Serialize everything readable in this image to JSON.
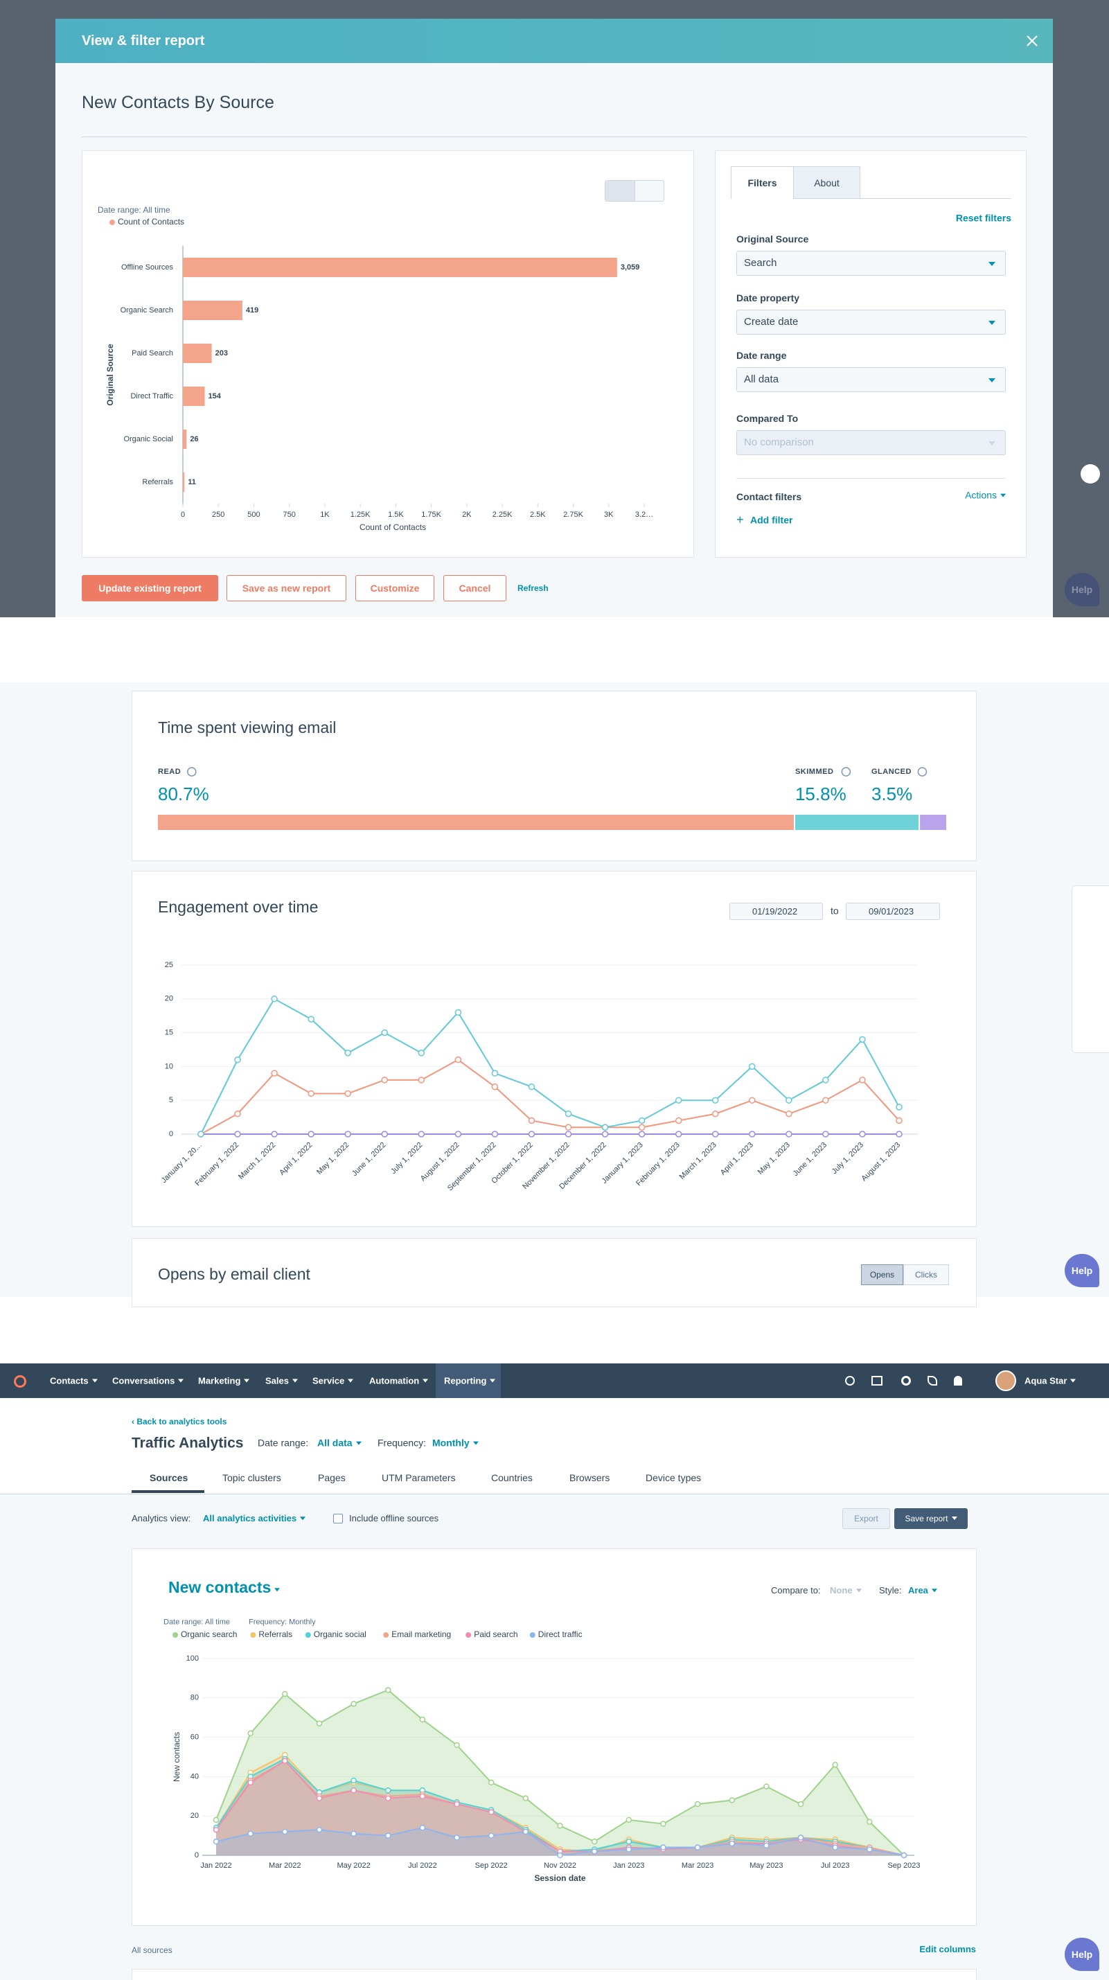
{
  "modal": {
    "title": "View & filter report",
    "report_title": "New Contacts By Source",
    "date_range": "Date range: All time",
    "tabs": [
      "Filters",
      "About"
    ],
    "reset_filters": "Reset filters",
    "filters": [
      {
        "label": "Original Source",
        "value": "Search"
      },
      {
        "label": "Date property",
        "value": "Create date"
      },
      {
        "label": "Date range",
        "value": "All data"
      },
      {
        "label": "Compared To",
        "value": "No comparison"
      }
    ],
    "contact_filters": "Contact filters",
    "actions": "Actions",
    "add_filter": "Add filter",
    "buttons": [
      "Update existing report",
      "Save as new report",
      "Customize",
      "Cancel"
    ],
    "refresh": "Refresh"
  },
  "email_report": {
    "dates": [
      "01/19/2022",
      "09/01/2023"
    ],
    "to": "to",
    "opens_title": "Opens by email client",
    "toggle": [
      "Opens",
      "Clicks"
    ]
  },
  "traffic": {
    "nav": [
      "Contacts",
      "Conversations",
      "Marketing",
      "Sales",
      "Service",
      "Automation",
      "Reporting"
    ],
    "user": "Aqua Star",
    "back": "Back to analytics tools",
    "title": "Traffic Analytics",
    "date_range_label": "Date range:",
    "date_range_value": "All data",
    "frequency_label": "Frequency:",
    "frequency_value": "Monthly",
    "tabs": [
      "Sources",
      "Topic clusters",
      "Pages",
      "UTM Parameters",
      "Countries",
      "Browsers",
      "Device types"
    ],
    "view_label": "Analytics view:",
    "view_value": "All analytics activities",
    "offline": "Include offline sources",
    "export": "Export",
    "save": "Save report",
    "metric": "New contacts",
    "compare_label": "Compare to:",
    "compare_value": "None",
    "style_label": "Style:",
    "style_value": "Area",
    "chart_date_range": "Date range: All time",
    "chart_frequency": "Frequency: Monthly",
    "all_sources": "All sources",
    "edit_columns": "Edit columns"
  },
  "help": "Help",
  "chart_data": [
    {
      "type": "bar",
      "horizontal": true,
      "y_label": "Original Source",
      "x_label": "Count of Contacts",
      "series_name": "Count of Contacts",
      "categories": [
        "Offline Sources",
        "Organic Search",
        "Paid Search",
        "Direct Traffic",
        "Organic Social",
        "Referrals"
      ],
      "values": [
        3059,
        419,
        203,
        154,
        26,
        11
      ],
      "value_labels": [
        "3,059",
        "419",
        "203",
        "154",
        "26",
        "11"
      ],
      "color": "#f5a48c",
      "xlim": [
        0,
        3250
      ],
      "xticks": [
        0,
        250,
        500,
        750,
        {
          "value": 1000,
          "label": "1K"
        },
        {
          "value": 1250,
          "label": "1.25K"
        },
        {
          "value": 1500,
          "label": "1.5K"
        },
        {
          "value": 1750,
          "label": "1.75K"
        },
        {
          "value": 2000,
          "label": "2K"
        },
        {
          "value": 2250,
          "label": "2.25K"
        },
        {
          "value": 2500,
          "label": "2.5K"
        },
        {
          "value": 2750,
          "label": "2.75K"
        },
        {
          "value": 3000,
          "label": "3K"
        },
        {
          "value": 3250,
          "label": "3.2…"
        }
      ]
    },
    {
      "type": "share",
      "title": "Time spent viewing email",
      "categories": [
        "READ",
        "SKIMMED",
        "GLANCED"
      ],
      "values": [
        80.7,
        15.8,
        3.5
      ],
      "value_labels": [
        "80.7%",
        "15.8%",
        "3.5%"
      ],
      "colors": [
        "#f5a48c",
        "#6fd2d8",
        "#b9a3ea"
      ]
    },
    {
      "type": "line",
      "title": "Engagement over time",
      "categories": [
        "January 1, 20…",
        "February 1, 2022",
        "March 1, 2022",
        "April 1, 2022",
        "May 1, 2022",
        "June 1, 2022",
        "July 1, 2022",
        "August 1, 2022",
        "September 1, 2022",
        "October 1, 2022",
        "November 1, 2022",
        "December 1, 2022",
        "January 1, 2023",
        "February 1, 2023",
        "March 1, 2023",
        "April 1, 2023",
        "May 1, 2023",
        "June 1, 2023",
        "July 1, 2023",
        "August 1, 2023"
      ],
      "series": [
        {
          "color": "#62c9d6",
          "values": [
            0,
            11,
            20,
            17,
            12,
            15,
            12,
            18,
            9,
            7,
            3,
            1,
            2,
            5,
            5,
            10,
            5,
            8,
            14,
            4
          ]
        },
        {
          "color": "#f2967c",
          "values": [
            0,
            3,
            9,
            6,
            6,
            8,
            8,
            11,
            7,
            2,
            1,
            1,
            1,
            2,
            3,
            5,
            3,
            5,
            8,
            2
          ]
        },
        {
          "color": "#9b8be6",
          "values": [
            0,
            0,
            0,
            0,
            0,
            0,
            0,
            0,
            0,
            0,
            0,
            0,
            0,
            0,
            0,
            0,
            0,
            0,
            0,
            0
          ]
        }
      ],
      "ylim": [
        0,
        25
      ],
      "yticks": [
        0,
        5,
        10,
        15,
        20,
        25
      ],
      "grid": true
    },
    {
      "type": "area",
      "y_label": "New contacts",
      "x_label": "Session date",
      "categories": [
        "Jan 2022",
        null,
        "Mar 2022",
        null,
        "May 2022",
        null,
        "Jul 2022",
        null,
        "Sep 2022",
        null,
        "Nov 2022",
        null,
        "Jan 2023",
        null,
        "Mar 2023",
        null,
        "May 2023",
        null,
        "Jul 2023",
        null,
        "Sep 2023"
      ],
      "series": [
        {
          "name": "Organic search",
          "color": "#9fd28a",
          "values": [
            18,
            62,
            82,
            67,
            77,
            84,
            69,
            56,
            37,
            29,
            15,
            7,
            18,
            16,
            26,
            28,
            35,
            26,
            46,
            17,
            0
          ]
        },
        {
          "name": "Referrals",
          "color": "#f5c26b",
          "values": [
            14,
            42,
            51,
            32,
            37,
            33,
            33,
            27,
            23,
            14,
            3,
            2,
            8,
            4,
            4,
            9,
            8,
            9,
            8,
            4,
            0
          ]
        },
        {
          "name": "Organic social",
          "color": "#51d3d9",
          "values": [
            14,
            40,
            49,
            32,
            38,
            33,
            33,
            27,
            23,
            13,
            2,
            3,
            7,
            4,
            4,
            8,
            7,
            9,
            7,
            4,
            0
          ]
        },
        {
          "name": "Email marketing",
          "color": "#f2a58e",
          "values": [
            13,
            38,
            48,
            30,
            33,
            30,
            31,
            26,
            22,
            12,
            2,
            2,
            4,
            3,
            4,
            7,
            6,
            9,
            6,
            4,
            0
          ]
        },
        {
          "name": "Paid search",
          "color": "#ea90b1",
          "values": [
            13,
            37,
            48,
            29,
            33,
            29,
            30,
            26,
            22,
            12,
            2,
            2,
            4,
            3,
            4,
            6,
            6,
            8,
            5,
            3,
            0
          ]
        },
        {
          "name": "Direct traffic",
          "color": "#8fb5ee",
          "values": [
            7,
            11,
            12,
            13,
            11,
            10,
            14,
            9,
            10,
            12,
            0,
            2,
            3,
            4,
            4,
            6,
            5,
            9,
            4,
            3,
            0
          ]
        }
      ],
      "ylim": [
        0,
        100
      ],
      "yticks": [
        0,
        20,
        40,
        60,
        80,
        100
      ],
      "grid": true
    }
  ]
}
